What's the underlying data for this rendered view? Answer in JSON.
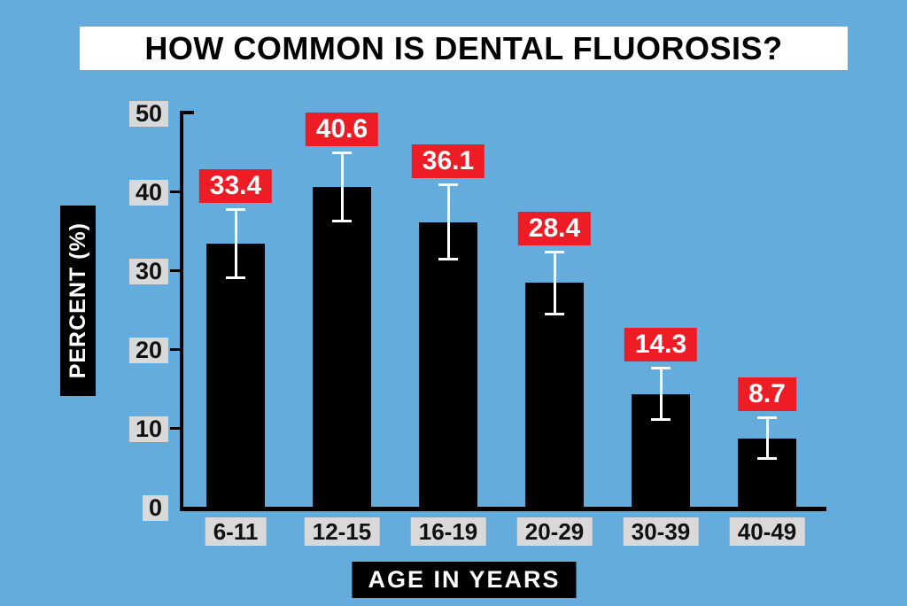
{
  "title": "HOW COMMON IS DENTAL FLUOROSIS?",
  "colors": {
    "background": "#64ACDC",
    "bar": "#000000",
    "value_label_bg": "#EE1C24",
    "value_label_text": "#FFFFFF",
    "tick_chip_bg": "#D9D9D9",
    "axis": "#000000",
    "error_bar": "#FFFFFF",
    "title_bg": "#FFFFFF",
    "title_text": "#000000"
  },
  "chart_data": {
    "type": "bar",
    "title": "HOW COMMON IS DENTAL FLUOROSIS?",
    "categories": [
      "6-11",
      "12-15",
      "16-19",
      "20-29",
      "30-39",
      "40-49"
    ],
    "values": [
      33.4,
      40.6,
      36.1,
      28.4,
      14.3,
      8.7
    ],
    "data_labels": [
      "33.4",
      "40.6",
      "36.1",
      "28.4",
      "14.3",
      "8.7"
    ],
    "error_margins": [
      4.5,
      4.5,
      4.9,
      4.1,
      3.4,
      2.75
    ],
    "xlabel": "AGE IN YEARS",
    "ylabel": "PERCENT (%)",
    "ylim": [
      0,
      50
    ],
    "yticks": [
      0,
      10,
      20,
      30,
      40,
      50
    ],
    "grid": false,
    "legend": false,
    "error_bars": true
  }
}
